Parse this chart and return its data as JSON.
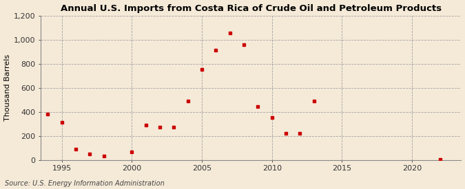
{
  "title": "Annual U.S. Imports from Costa Rica of Crude Oil and Petroleum Products",
  "ylabel": "Thousand Barrels",
  "source": "Source: U.S. Energy Information Administration",
  "background_color": "#f5ead8",
  "plot_bg_color": "#f5ead8",
  "marker_color": "#cc0000",
  "grid_color": "#999999",
  "xlim": [
    1993.5,
    2023.5
  ],
  "ylim": [
    0,
    1200
  ],
  "yticks": [
    0,
    200,
    400,
    600,
    800,
    1000,
    1200
  ],
  "ytick_labels": [
    "0",
    "200",
    "400",
    "600",
    "800",
    "1,000",
    "1,200"
  ],
  "xticks": [
    1995,
    2000,
    2005,
    2010,
    2015,
    2020
  ],
  "data": [
    [
      1994,
      380
    ],
    [
      1995,
      310
    ],
    [
      1996,
      90
    ],
    [
      1997,
      50
    ],
    [
      1998,
      30
    ],
    [
      2000,
      65
    ],
    [
      2001,
      290
    ],
    [
      2002,
      270
    ],
    [
      2003,
      270
    ],
    [
      2004,
      490
    ],
    [
      2005,
      750
    ],
    [
      2006,
      910
    ],
    [
      2007,
      1055
    ],
    [
      2008,
      955
    ],
    [
      2009,
      445
    ],
    [
      2010,
      350
    ],
    [
      2011,
      220
    ],
    [
      2012,
      220
    ],
    [
      2013,
      490
    ],
    [
      2022,
      5
    ]
  ],
  "title_fontsize": 9.5,
  "label_fontsize": 8,
  "tick_fontsize": 8,
  "source_fontsize": 7
}
